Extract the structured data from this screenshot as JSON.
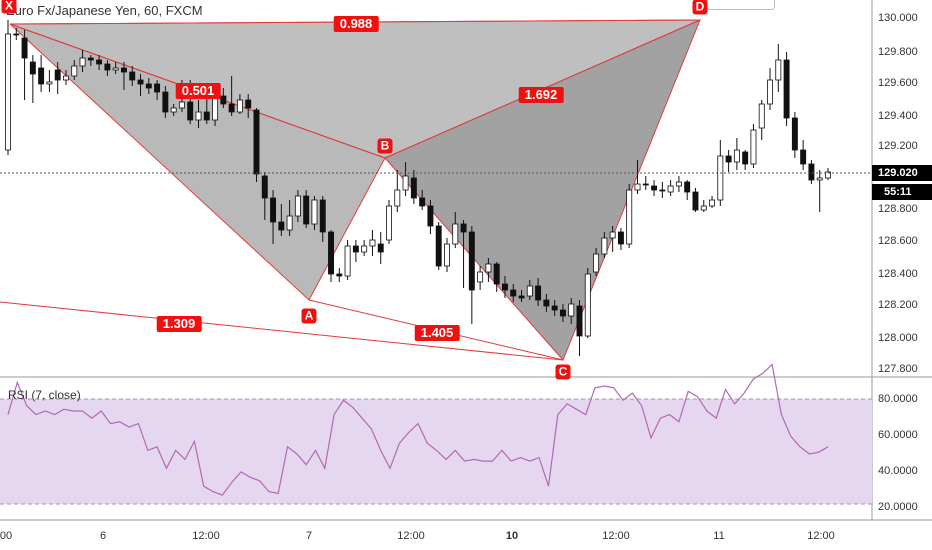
{
  "chart": {
    "title": "Euro Fx/Japanese Yen, 60, FXCM",
    "current_price": "129.020",
    "countdown": "55:11",
    "price_ticks": [
      "130.000",
      "129.800",
      "129.600",
      "129.400",
      "129.200",
      "128.800",
      "128.600",
      "128.400",
      "128.200",
      "128.000",
      "127.800"
    ],
    "time_ticks": [
      "00",
      "6",
      "12:00",
      "7",
      "12:00",
      "10",
      "12:00",
      "11",
      "12:00"
    ],
    "bold_time_ticks": [
      "10"
    ],
    "pattern_points": [
      "X",
      "A",
      "B",
      "C",
      "D"
    ],
    "ratio_labels": [
      "0.988",
      "0.501",
      "1.692",
      "1.309",
      "1.405"
    ],
    "colors": {
      "up": "#ffffff",
      "down": "#111111",
      "pattern_line": "#e03c3c",
      "label": "#ef1010",
      "rsi_band": "#e6d7f0",
      "rsi_line": "#b06ab3"
    }
  },
  "rsi": {
    "title": "RSI (7, close)",
    "ticks": [
      "80.0000",
      "60.0000",
      "40.0000",
      "20.0000"
    ],
    "upper": 80,
    "lower": 20,
    "values": [
      60,
      78,
      65,
      60,
      62,
      60,
      63,
      62,
      62,
      58,
      62,
      55,
      56,
      53,
      55,
      40,
      42,
      30,
      40,
      35,
      45,
      20,
      17,
      15,
      22,
      28,
      25,
      23,
      17,
      16,
      42,
      38,
      32,
      40,
      30,
      60,
      68,
      64,
      58,
      52,
      40,
      30,
      44,
      50,
      55,
      44,
      40,
      35,
      40,
      34,
      35,
      34,
      34,
      40,
      34,
      36,
      34,
      36,
      20,
      60,
      66,
      63,
      60,
      75,
      76,
      75,
      68,
      72,
      65,
      47,
      58,
      60,
      56,
      73,
      70,
      62,
      58,
      74,
      66,
      72,
      80,
      83,
      88,
      60,
      48,
      42,
      38,
      39,
      42
    ]
  }
}
